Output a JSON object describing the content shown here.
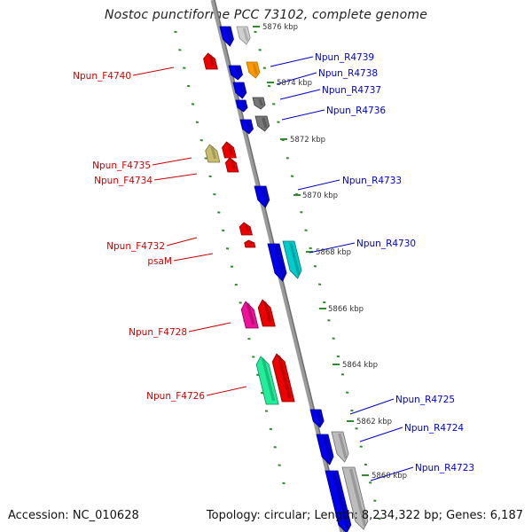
{
  "title": "Nostoc punctiforme PCC 73102, complete genome",
  "accession_text": "Accession: NC_010628",
  "summary_text": "Topology: circular; Length: 8,234,322 bp; Genes: 6,187",
  "colors": {
    "backbone": "#808080",
    "forward_label": "#cc0000",
    "reverse_label": "#0000cc",
    "tick": "#2e8b2e",
    "scale_text": "#333333"
  },
  "scale_labels": [
    "5876 kbp",
    "5874 kbp",
    "5872 kbp",
    "5870 kbp",
    "5868 kbp",
    "5866 kbp",
    "5864 kbp",
    "5862 kbp",
    "5860 kbp"
  ],
  "forward_genes": [
    "Npun_F4740",
    "Npun_F4735",
    "Npun_F4734",
    "Npun_F4732",
    "psaM",
    "Npun_F4728",
    "Npun_F4726"
  ],
  "reverse_genes": [
    "Npun_R4739",
    "Npun_R4738",
    "Npun_R4737",
    "Npun_R4736",
    "Npun_R4733",
    "Npun_R4730",
    "Npun_R4725",
    "Npun_R4724",
    "Npun_R4723"
  ]
}
